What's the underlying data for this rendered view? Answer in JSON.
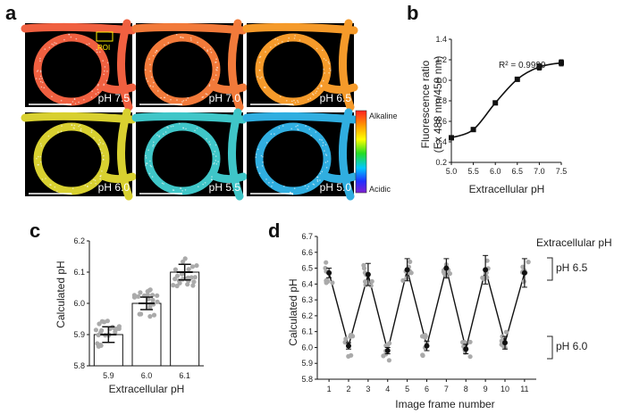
{
  "panel_letters": {
    "a": "a",
    "b": "b",
    "c": "c",
    "d": "d"
  },
  "colors": {
    "alkaline": "#ff2a1a",
    "acidic": "#3b1fd0",
    "bar_fill": "#ffffff",
    "dot": "#aaaaaa"
  },
  "panel_a": {
    "roi_label": "ROI",
    "colorbar": {
      "top_label": "Alkaline",
      "bottom_label": "Acidic"
    },
    "images": [
      {
        "ph": "pH 7.5",
        "color": "#f06040"
      },
      {
        "ph": "pH 7.0",
        "color": "#f27a3a"
      },
      {
        "ph": "pH 6.5",
        "color": "#f59a2a"
      },
      {
        "ph": "pH 6.0",
        "color": "#d8d030"
      },
      {
        "ph": "pH 5.5",
        "color": "#3fc6c8"
      },
      {
        "ph": "pH 5.0",
        "color": "#30aee0"
      }
    ]
  },
  "chart_data": [
    {
      "id": "b",
      "type": "line",
      "xlabel": "Extracellular pH",
      "ylabel_line1": "Fluorescence ratio",
      "ylabel_line2": "(Ex 488 nm/458 nm)",
      "annotation": "R² = 0.9999",
      "xlim": [
        5.0,
        7.5
      ],
      "ylim": [
        0.2,
        1.4
      ],
      "xticks": [
        "5.0",
        "5.5",
        "6.0",
        "6.5",
        "7.0",
        "7.5"
      ],
      "yticks": [
        "0.2",
        "0.4",
        "0.6",
        "0.8",
        "1.0",
        "1.2",
        "1.4"
      ],
      "x": [
        5.0,
        5.5,
        6.0,
        6.5,
        7.0,
        7.5
      ],
      "y": [
        0.44,
        0.52,
        0.78,
        1.01,
        1.13,
        1.17
      ],
      "err": [
        0.02,
        0.01,
        0.01,
        0.02,
        0.03,
        0.03
      ]
    },
    {
      "id": "c",
      "type": "bar",
      "xlabel": "Extracellular pH",
      "ylabel": "Calculated pH",
      "categories": [
        "5.9",
        "6.0",
        "6.1"
      ],
      "values": [
        5.9,
        6.0,
        6.1
      ],
      "err": [
        0.025,
        0.02,
        0.025
      ],
      "ylim": [
        5.8,
        6.2
      ],
      "yticks": [
        "5.8",
        "5.9",
        "6.0",
        "6.1",
        "6.2"
      ]
    },
    {
      "id": "d",
      "type": "line",
      "xlabel": "Image frame number",
      "ylabel": "Calculated pH",
      "legend_title": "Extracellular pH",
      "bracket_high": "pH 6.5",
      "bracket_low": "pH 6.0",
      "x": [
        1,
        2,
        3,
        4,
        5,
        6,
        7,
        8,
        9,
        10,
        11
      ],
      "y": [
        6.47,
        6.01,
        6.46,
        5.98,
        6.49,
        6.01,
        6.5,
        5.99,
        6.49,
        6.03,
        6.47
      ],
      "err": [
        0.03,
        0.02,
        0.07,
        0.02,
        0.07,
        0.03,
        0.06,
        0.03,
        0.09,
        0.04,
        0.09
      ],
      "xlim": [
        0.4,
        11.6
      ],
      "ylim": [
        5.8,
        6.7
      ],
      "xticks": [
        "1",
        "2",
        "3",
        "4",
        "5",
        "6",
        "7",
        "8",
        "9",
        "10",
        "11"
      ],
      "yticks": [
        "5.8",
        "5.9",
        "6.0",
        "6.1",
        "6.2",
        "6.3",
        "6.4",
        "6.5",
        "6.6",
        "6.7"
      ]
    }
  ]
}
